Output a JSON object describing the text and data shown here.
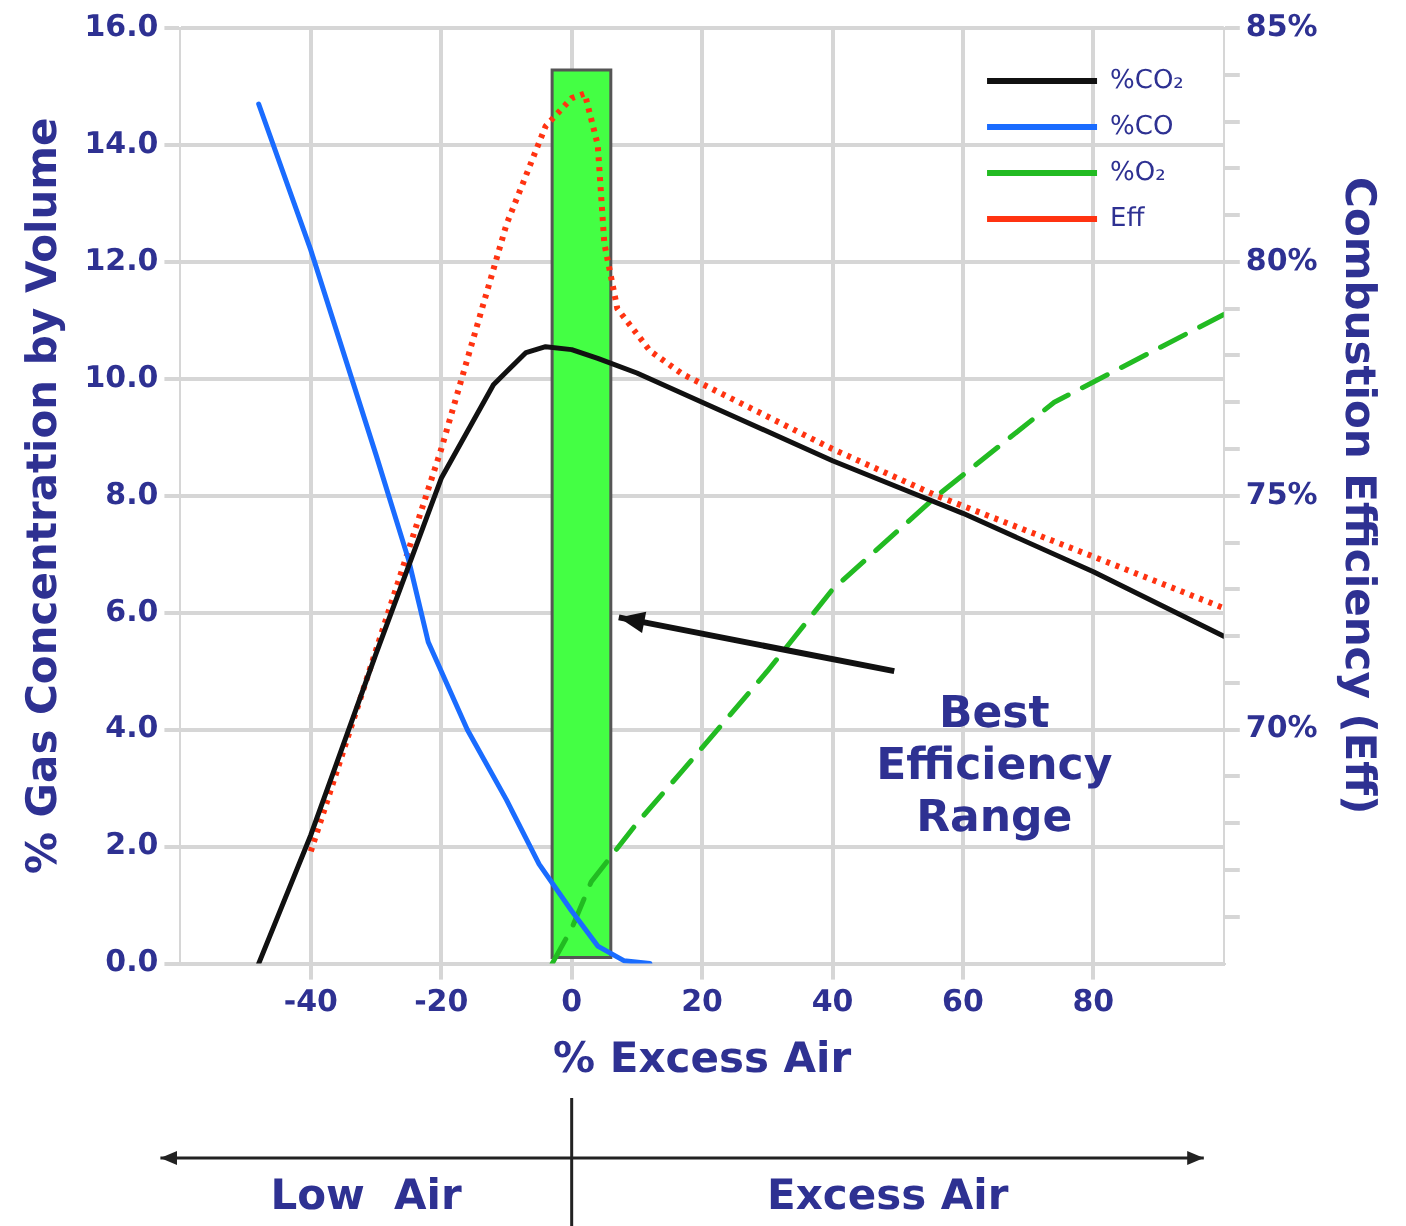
{
  "chart_data": {
    "type": "line",
    "xlabel": "% Excess Air",
    "ylabel": "% Gas Concentration by Volume",
    "y2label": "Combustion Efficiency (Eff)",
    "xlim": [
      -60,
      100
    ],
    "xticks": [
      -40,
      -20,
      0,
      20,
      40,
      60,
      80
    ],
    "ylim": [
      0,
      16
    ],
    "yticks": [
      {
        "value": 0,
        "label": "0.0"
      },
      {
        "value": 2,
        "label": "2.0"
      },
      {
        "value": 4,
        "label": "4.0"
      },
      {
        "value": 6,
        "label": "6.0"
      },
      {
        "value": 8,
        "label": "8.0"
      },
      {
        "value": 10,
        "label": "10.0"
      },
      {
        "value": 12,
        "label": "12.0"
      },
      {
        "value": 14,
        "label": "14.0"
      },
      {
        "value": 16,
        "label": "16.0"
      }
    ],
    "y2lim": [
      65,
      85
    ],
    "y2ticks": [
      {
        "value": 66,
        "label": null
      },
      {
        "value": 67,
        "label": null
      },
      {
        "value": 68,
        "label": null
      },
      {
        "value": 69,
        "label": null
      },
      {
        "value": 70,
        "label": "70%"
      },
      {
        "value": 71,
        "label": null
      },
      {
        "value": 72,
        "label": null
      },
      {
        "value": 73,
        "label": null
      },
      {
        "value": 74,
        "label": null
      },
      {
        "value": 75,
        "label": "75%"
      },
      {
        "value": 76,
        "label": null
      },
      {
        "value": 77,
        "label": null
      },
      {
        "value": 78,
        "label": null
      },
      {
        "value": 79,
        "label": null
      },
      {
        "value": 80,
        "label": "80%"
      },
      {
        "value": 81,
        "label": null
      },
      {
        "value": 82,
        "label": null
      },
      {
        "value": 83,
        "label": null
      },
      {
        "value": 84,
        "label": null
      },
      {
        "value": 85,
        "label": "85%"
      }
    ],
    "grid": true,
    "legend": "top right",
    "marker": "none",
    "series": [
      {
        "name": "%CO₂",
        "color": "#111111",
        "line_style": "solid",
        "x": [
          -48,
          -40,
          -30,
          -20,
          -12,
          -7,
          -4,
          0,
          4,
          10,
          20,
          40,
          60,
          80,
          100
        ],
        "values": [
          0,
          2.2,
          5.3,
          8.3,
          9.9,
          10.45,
          10.55,
          10.5,
          10.35,
          10.1,
          9.6,
          8.6,
          7.7,
          6.7,
          5.6
        ]
      },
      {
        "name": "%CO",
        "color": "#1a6cff",
        "line_style": "solid",
        "x": [
          -48,
          -40,
          -30,
          -25,
          -22,
          -16,
          -10,
          -5,
          0,
          4,
          8,
          12
        ],
        "values": [
          14.7,
          12.2,
          8.7,
          6.9,
          5.5,
          4.0,
          2.8,
          1.7,
          0.9,
          0.3,
          0.05,
          0
        ]
      },
      {
        "name": "%O₂",
        "color": "#22bb22",
        "line_style": "dashed",
        "x": [
          -3,
          0,
          3,
          10,
          17,
          30,
          40,
          56,
          74,
          100
        ],
        "values": [
          0,
          0.6,
          1.4,
          2.4,
          3.3,
          5.0,
          6.4,
          8.0,
          9.6,
          11.1
        ]
      },
      {
        "name": "Eff",
        "color": "#ff3311",
        "line_style": "dotted",
        "axis": "y2",
        "x": [
          -40,
          -30,
          -20,
          -10,
          -4,
          0,
          2,
          4,
          5,
          7,
          12,
          17,
          40,
          56,
          80,
          100
        ],
        "values": [
          67.4,
          71.7,
          76.0,
          80.8,
          82.9,
          83.5,
          83.6,
          82.5,
          80.4,
          79.0,
          78.1,
          77.6,
          76.0,
          75.0,
          73.7,
          72.6
        ]
      }
    ],
    "bands": [
      {
        "axis": "x",
        "from": -3,
        "to": 6,
        "label": "Best Efficiency Range",
        "color": "#44ff44"
      }
    ],
    "annotations": [
      "Low  Air",
      "Excess Air"
    ]
  }
}
